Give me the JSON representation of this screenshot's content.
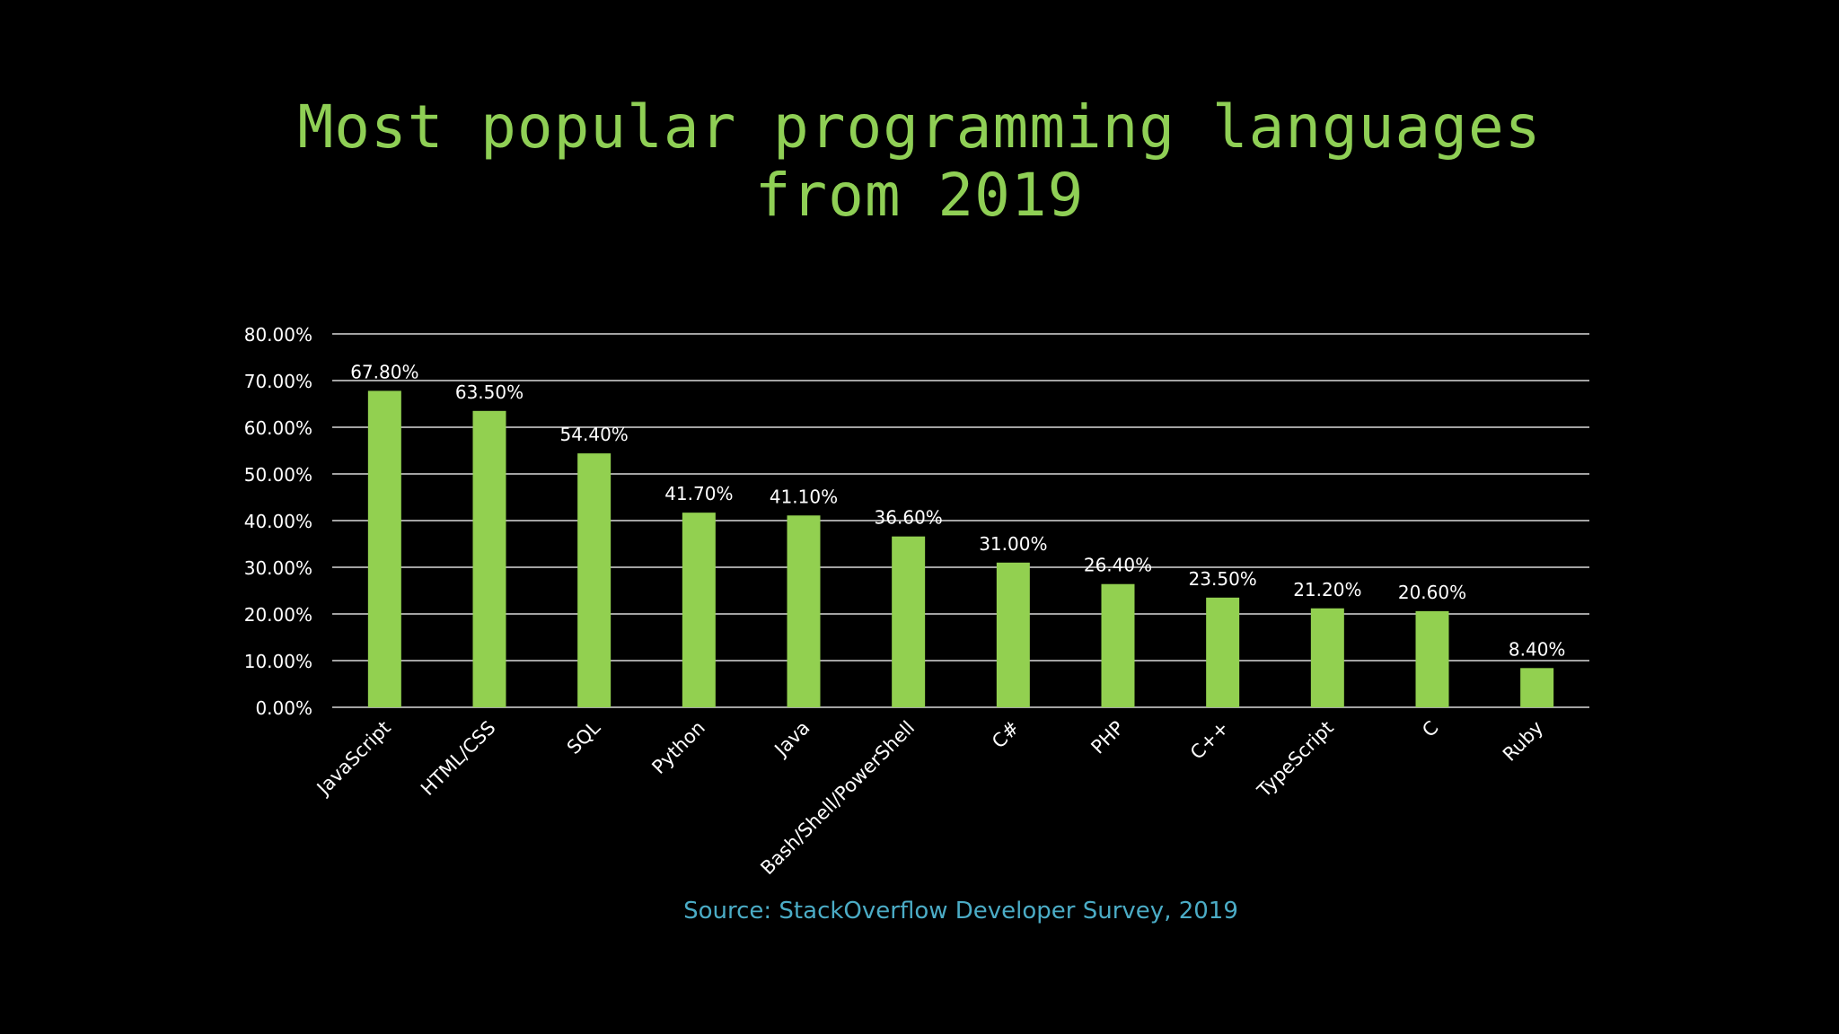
{
  "slide": {
    "title_lines": [
      "Most popular programming languages",
      "from 2019"
    ],
    "source": "Source: StackOverflow Developer Survey, 2019"
  },
  "colors": {
    "background": "#000000",
    "title": "#8fcf55",
    "bar": "#92d050",
    "grid": "#d9d9d9",
    "axis_text": "#ffffff",
    "source": "#4bacc6"
  },
  "chart_data": {
    "type": "bar",
    "categories": [
      "JavaScript",
      "HTML/CSS",
      "SQL",
      "Python",
      "Java",
      "Bash/Shell/PowerShell",
      "C#",
      "PHP",
      "C++",
      "TypeScript",
      "C",
      "Ruby"
    ],
    "values": [
      67.8,
      63.5,
      54.4,
      41.7,
      41.1,
      36.6,
      31.0,
      26.4,
      23.5,
      21.2,
      20.6,
      8.4
    ],
    "data_labels": [
      "67.80%",
      "63.50%",
      "54.40%",
      "41.70%",
      "41.10%",
      "36.60%",
      "31.00%",
      "26.40%",
      "23.50%",
      "21.20%",
      "20.60%",
      "8.40%"
    ],
    "y_ticks": [
      "0.00%",
      "10.00%",
      "20.00%",
      "30.00%",
      "40.00%",
      "50.00%",
      "60.00%",
      "70.00%",
      "80.00%"
    ],
    "ylim": [
      0,
      80
    ],
    "title": "",
    "xlabel": "",
    "ylabel": "",
    "grid": true,
    "legend": false
  }
}
